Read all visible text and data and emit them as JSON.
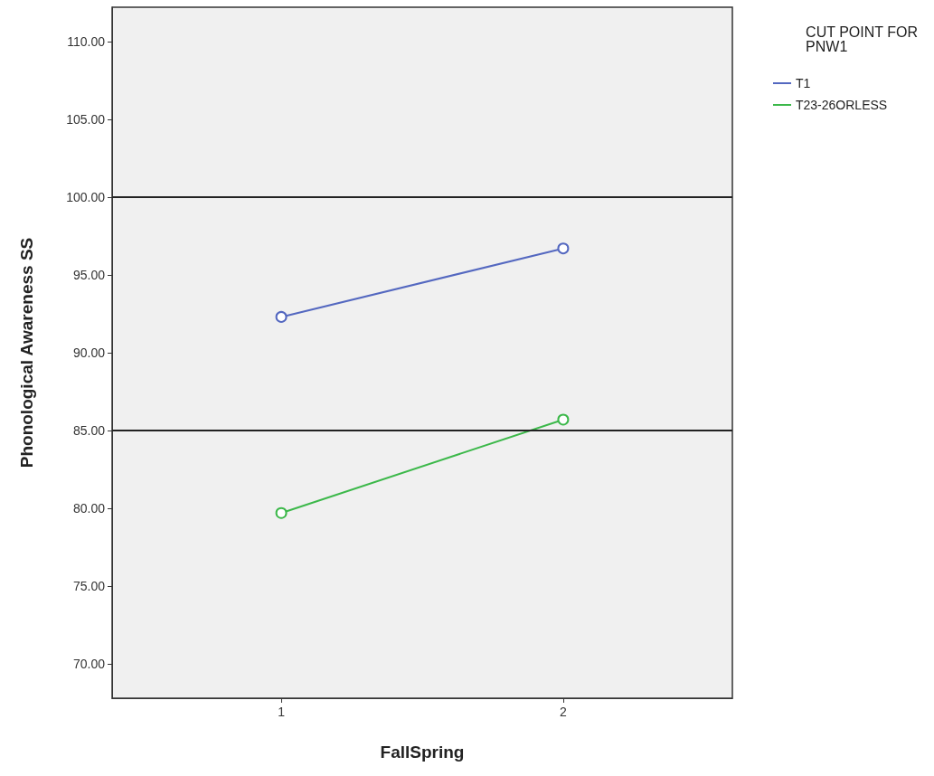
{
  "chart_data": {
    "type": "line",
    "xlabel": "FallSpring",
    "ylabel": "Phonological Awareness SS",
    "legend_title": "CUT POINT FOR PNW1",
    "x": [
      1,
      2
    ],
    "series": [
      {
        "name": "T1",
        "color": "#5468c0",
        "values": [
          92.3,
          96.7
        ]
      },
      {
        "name": "T23-26ORLESS",
        "color": "#3cb84a",
        "values": [
          79.7,
          85.7
        ]
      }
    ],
    "xlim": [
      0.4,
      2.6
    ],
    "xticks": [
      1,
      2
    ],
    "ylim": [
      67.8,
      112.2
    ],
    "yticks": [
      {
        "value": 70,
        "label": "70.00"
      },
      {
        "value": 75,
        "label": "75.00"
      },
      {
        "value": 80,
        "label": "80.00"
      },
      {
        "value": 85,
        "label": "85.00"
      },
      {
        "value": 90,
        "label": "90.00"
      },
      {
        "value": 95,
        "label": "95.00"
      },
      {
        "value": 100,
        "label": "100.00"
      },
      {
        "value": 105,
        "label": "105.00"
      },
      {
        "value": 110,
        "label": "110.00"
      }
    ],
    "ref_lines": [
      {
        "axis": "y",
        "value": 100,
        "color": "#222222"
      },
      {
        "axis": "y",
        "value": 85,
        "color": "#222222"
      }
    ],
    "grid": false,
    "legend": "top right",
    "marker": "circle",
    "line_style": "solid"
  }
}
